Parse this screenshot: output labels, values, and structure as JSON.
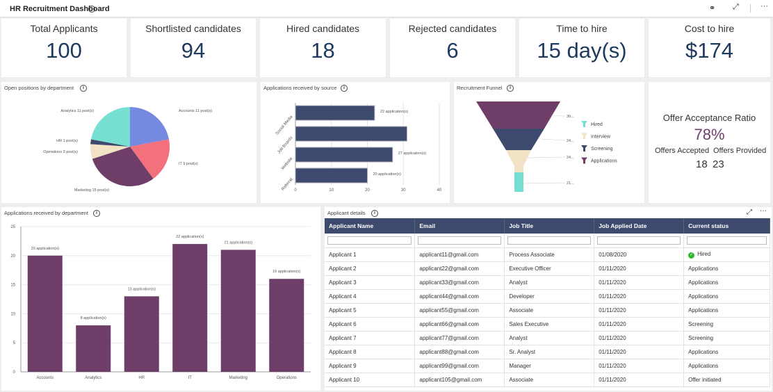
{
  "header": {
    "title": "HR Recruitment Dashboard",
    "icons": [
      "glasses-icon",
      "expand-icon",
      "more-icon"
    ]
  },
  "kpis": [
    {
      "label": "Total Applicants",
      "value": "100"
    },
    {
      "label": "Shortlisted candidates",
      "value": "94"
    },
    {
      "label": "Hired candidates",
      "value": "18"
    },
    {
      "label": "Rejected candidates",
      "value": "6"
    },
    {
      "label": "Time to hire",
      "value": "15 day(s)"
    },
    {
      "label": "Cost to hire",
      "value": "$174"
    }
  ],
  "panels": {
    "pie": "Open positions by department",
    "source": "Applications received by source",
    "funnel": "Recruitment Funnel",
    "dept": "Applications received by department",
    "table": "Applicant details"
  },
  "offer": {
    "title": "Offer Acceptance Ratio",
    "ratio": "78%",
    "accepted_label": "Offers Accepted",
    "provided_label": "Offers Provided",
    "accepted": "18",
    "provided": "23"
  },
  "chart_data": [
    {
      "type": "pie",
      "title": "Open positions by department",
      "categories": [
        "Accounts",
        "IT",
        "Marketing",
        "Operations",
        "HR",
        "Analytics"
      ],
      "values": [
        11,
        9,
        15,
        3,
        1,
        11
      ],
      "labels": [
        "Accounts 11 post(s)",
        "IT 9 post(s)",
        "Marketing 15 post(s)",
        "Operations 3 post(s)",
        "HR 1 post(s)",
        "Analytics 11 post(s)"
      ],
      "colors": [
        "#7589e0",
        "#f3707d",
        "#6e3d68",
        "#f2e2c6",
        "#3d4a6e",
        "#75e0d2"
      ]
    },
    {
      "type": "bar",
      "orientation": "horizontal",
      "title": "Applications received by source",
      "categories": [
        "Social Media",
        "Job Boards",
        "Website",
        "Referral"
      ],
      "values": [
        22,
        31,
        27,
        20
      ],
      "data_labels": [
        "22 application(s)",
        "",
        "27 application(s)",
        "20 application(s)"
      ],
      "xlim": [
        0,
        40
      ],
      "xticks": [
        0,
        10,
        20,
        30,
        40
      ],
      "color": "#3d4a6e"
    },
    {
      "type": "funnel",
      "title": "Recruitment Funnel",
      "categories": [
        "Applications",
        "Screening",
        "Interview",
        "Hired"
      ],
      "data_labels": [
        "30...",
        "24...",
        "24...",
        "21..."
      ],
      "colors": [
        "#6e3d68",
        "#3d4a6e",
        "#f2e2c6",
        "#75e0d2"
      ],
      "legend": [
        "Hired",
        "Interview",
        "Screening",
        "Applications"
      ],
      "legend_position": "right"
    },
    {
      "type": "bar",
      "title": "Applications received by department",
      "categories": [
        "Accounts",
        "Analytics",
        "HR",
        "IT",
        "Marketing",
        "Operations"
      ],
      "values": [
        20,
        8,
        13,
        22,
        21,
        16
      ],
      "data_labels": [
        "20 application(s)",
        "8 application(s)",
        "13 application(s)",
        "22 application(s)",
        "21 application(s)",
        "16 application(s)"
      ],
      "ylim": [
        0,
        25
      ],
      "yticks": [
        0,
        5,
        10,
        15,
        20,
        25
      ],
      "color": "#6e3d68"
    }
  ],
  "table": {
    "columns": [
      "Applicant Name",
      "Email",
      "Job Title",
      "Job Applied Date",
      "Current status"
    ],
    "rows": [
      [
        "Applicant 1",
        "applicant11@gmail.com",
        "Process Associate",
        "01/08/2020",
        "Hired"
      ],
      [
        "Applicant 2",
        "applicant22@gmail.com",
        "Executive Officer",
        "01/11/2020",
        "Applications"
      ],
      [
        "Applicant 3",
        "applicant33@gmail.com",
        "Analyst",
        "01/11/2020",
        "Applications"
      ],
      [
        "Applicant 4",
        "applicant44@gmail.com",
        "Developer",
        "01/11/2020",
        "Applications"
      ],
      [
        "Applicant 5",
        "applicant55@gmail.com",
        "Associate",
        "01/11/2020",
        "Applications"
      ],
      [
        "Applicant 6",
        "applicant66@gmail.com",
        "Sales Executive",
        "01/11/2020",
        "Screening"
      ],
      [
        "Applicant 7",
        "applicant77@gmail.com",
        "Analyst",
        "01/11/2020",
        "Screening"
      ],
      [
        "Applicant 8",
        "applicant88@gmail.com",
        "Sr. Analyst",
        "01/11/2020",
        "Applications"
      ],
      [
        "Applicant 9",
        "applicant99@gmail.com",
        "Manager",
        "01/11/2020",
        "Applications"
      ],
      [
        "Applicant 10",
        "applicant105@gmail.com",
        "Associate",
        "01/11/2020",
        "Offer initiated"
      ]
    ]
  }
}
